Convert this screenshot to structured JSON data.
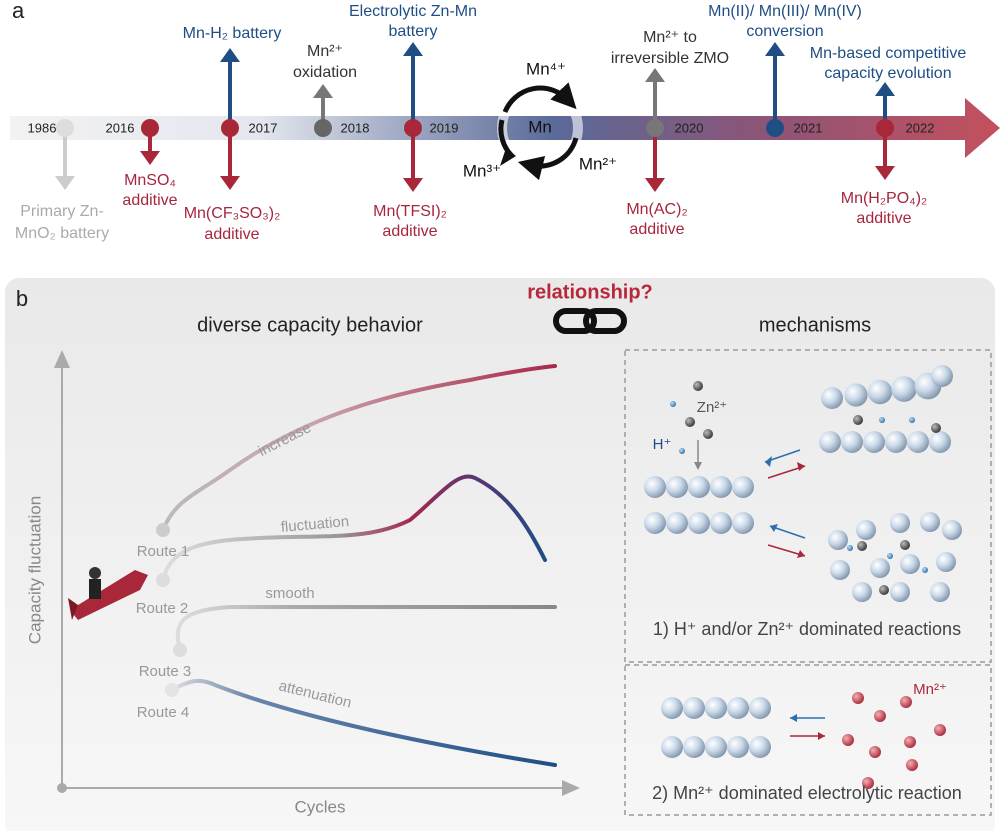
{
  "panel_a": {
    "label": "a",
    "years": [
      "1986",
      "2016",
      "2017",
      "2018",
      "2019",
      "2020",
      "2021",
      "2022"
    ],
    "events": {
      "primary": [
        "Primary Zn-",
        "MnO₂ battery"
      ],
      "mnso4": [
        "MnSO₄",
        "additive"
      ],
      "mnh2": [
        "Mn-H₂ battery"
      ],
      "cfso": [
        "Mn(CF₃SO₃)₂",
        "additive"
      ],
      "oxidation": [
        "Mn²⁺",
        "oxidation"
      ],
      "electrolytic": [
        "Electrolytic Zn-Mn",
        "battery"
      ],
      "tfsi": [
        "Mn(TFSI)₂",
        "additive"
      ],
      "zmo": [
        "Mn²⁺ to",
        "irreversible ZMO"
      ],
      "ac": [
        "Mn(AC)₂",
        "additive"
      ],
      "conversion": [
        "Mn(II)/ Mn(III)/ Mn(IV)",
        "conversion"
      ],
      "competitive": [
        "Mn-based competitive",
        "capacity evolution"
      ],
      "h2po4": [
        "Mn(H₂PO₄)₂",
        "additive"
      ]
    },
    "cycle": {
      "top": "Mn⁴⁺",
      "center": "Mn",
      "left": "Mn³⁺",
      "right": "Mn²⁺"
    }
  },
  "panel_b": {
    "label": "b",
    "relationship": "relationship?",
    "left_title": "diverse capacity behavior",
    "right_title": "mechanisms",
    "y_axis": "Capacity fluctuation",
    "x_axis": "Cycles",
    "curves": [
      "increase",
      "fluctuation",
      "smooth",
      "attenuation"
    ],
    "routes": [
      "Route 1",
      "Route 2",
      "Route 3",
      "Route 4"
    ],
    "mech1": {
      "zn": "Zn²⁺",
      "h": "H⁺",
      "caption": "1) H⁺ and/or Zn²⁺ dominated reactions"
    },
    "mech2": {
      "mn": "Mn²⁺",
      "caption": "2) Mn²⁺ dominated electrolytic reaction"
    }
  }
}
